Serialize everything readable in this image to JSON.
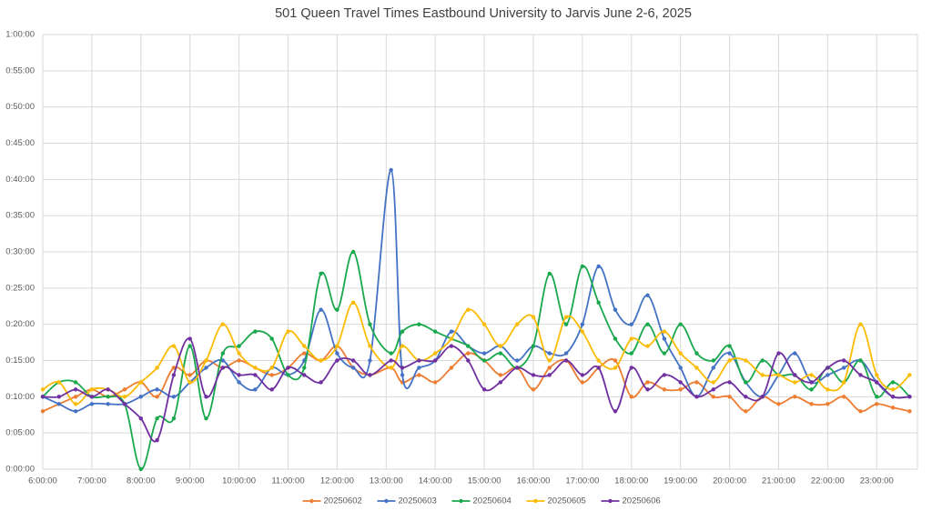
{
  "chart_data": {
    "type": "line",
    "title": "501 Queen Travel Times Eastbound University to Jarvis June 2-6, 2025",
    "x": [
      6,
      6.33,
      6.67,
      7,
      7.33,
      7.67,
      8,
      8.33,
      8.67,
      9,
      9.33,
      9.67,
      10,
      10.33,
      10.67,
      11,
      11.33,
      11.67,
      12,
      12.33,
      12.67,
      13.1,
      13.33,
      13.67,
      14,
      14.33,
      14.67,
      15,
      15.33,
      15.67,
      16,
      16.33,
      16.67,
      17,
      17.33,
      17.67,
      18,
      18.33,
      18.67,
      19,
      19.33,
      19.67,
      20,
      20.33,
      20.67,
      21,
      21.33,
      21.67,
      22,
      22.33,
      22.67,
      23,
      23.33,
      23.67
    ],
    "series": [
      {
        "name": "20250602",
        "color": "#ed7d31",
        "values": [
          8,
          9,
          10,
          11,
          10,
          11,
          12,
          10,
          14,
          13,
          15,
          14,
          15,
          14,
          13,
          14,
          16,
          15,
          17,
          14,
          13,
          14,
          12,
          13,
          12,
          14,
          16,
          15,
          13,
          14,
          11,
          14,
          15,
          12,
          14,
          15,
          10,
          12,
          11,
          11,
          12,
          10,
          10,
          8,
          10,
          9,
          10,
          9,
          9,
          10,
          8,
          9,
          8.5,
          8
        ]
      },
      {
        "name": "20250603",
        "color": "#4472c4",
        "values": [
          10,
          9,
          8,
          9,
          9,
          9,
          10,
          11,
          10,
          12,
          14,
          15,
          12,
          11,
          14,
          13,
          15,
          22,
          16,
          14,
          15,
          41.3,
          13,
          14,
          15,
          19,
          17,
          16,
          17,
          15,
          17,
          16,
          16,
          20,
          28,
          22,
          20,
          24,
          18,
          14,
          10,
          14,
          16,
          12,
          10,
          13,
          16,
          12,
          13,
          14,
          15,
          12,
          10,
          10
        ]
      },
      {
        "name": "20250604",
        "color": "#19a84c",
        "values": [
          10,
          12,
          12,
          10,
          10,
          9,
          0,
          7,
          7,
          17,
          7,
          16,
          17,
          19,
          18,
          13,
          14,
          27,
          22,
          30,
          20,
          16,
          19,
          20,
          19,
          18,
          17,
          15,
          16,
          14,
          17,
          27,
          20,
          28,
          23,
          18,
          16,
          20,
          16,
          20,
          16,
          15,
          17,
          12,
          15,
          13,
          13,
          11,
          14,
          12,
          15,
          10,
          12,
          10
        ]
      },
      {
        "name": "20250605",
        "color": "#fbbc05",
        "values": [
          11,
          12,
          9,
          11,
          11,
          10,
          12,
          14,
          17,
          12,
          15,
          20,
          16,
          14,
          14,
          19,
          17,
          15,
          17,
          23,
          17,
          14,
          17,
          15,
          16,
          18,
          22,
          20,
          17,
          20,
          21,
          15,
          21,
          19,
          15,
          14,
          18,
          17,
          19,
          16,
          14,
          12,
          15,
          15,
          13,
          13,
          12,
          13,
          11,
          12,
          20,
          13,
          11,
          13
        ]
      },
      {
        "name": "20250606",
        "color": "#7030a0",
        "values": [
          10,
          10,
          11,
          10,
          11,
          9,
          7,
          4,
          13,
          18,
          10,
          14,
          13,
          13,
          11,
          14,
          13,
          12,
          15,
          15,
          13,
          15,
          14,
          15,
          15,
          17,
          15,
          11,
          12,
          14,
          13,
          13,
          15,
          13,
          14,
          8,
          14,
          11,
          13,
          12,
          10,
          11,
          12,
          10,
          10,
          16,
          13,
          12,
          14,
          15,
          13,
          12,
          10,
          10
        ]
      }
    ],
    "xlim": [
      6,
      23.83
    ],
    "xticks": [
      {
        "value": 6,
        "label": "6:00:00"
      },
      {
        "value": 7,
        "label": "7:00:00"
      },
      {
        "value": 8,
        "label": "8:00:00"
      },
      {
        "value": 9,
        "label": "9:00:00"
      },
      {
        "value": 10,
        "label": "10:00:00"
      },
      {
        "value": 11,
        "label": "11:00:00"
      },
      {
        "value": 12,
        "label": "12:00:00"
      },
      {
        "value": 13,
        "label": "13:00:00"
      },
      {
        "value": 14,
        "label": "14:00:00"
      },
      {
        "value": 15,
        "label": "15:00:00"
      },
      {
        "value": 16,
        "label": "16:00:00"
      },
      {
        "value": 17,
        "label": "17:00:00"
      },
      {
        "value": 18,
        "label": "18:00:00"
      },
      {
        "value": 19,
        "label": "19:00:00"
      },
      {
        "value": 20,
        "label": "20:00:00"
      },
      {
        "value": 21,
        "label": "21:00:00"
      },
      {
        "value": 22,
        "label": "22:00:00"
      },
      {
        "value": 23,
        "label": "23:00:00"
      }
    ],
    "ylim": [
      0,
      60
    ],
    "yticks": [
      {
        "value": 0,
        "label": "0:00:00"
      },
      {
        "value": 5,
        "label": "0:05:00"
      },
      {
        "value": 10,
        "label": "0:10:00"
      },
      {
        "value": 15,
        "label": "0:15:00"
      },
      {
        "value": 20,
        "label": "0:20:00"
      },
      {
        "value": 25,
        "label": "0:25:00"
      },
      {
        "value": 30,
        "label": "0:30:00"
      },
      {
        "value": 35,
        "label": "0:35:00"
      },
      {
        "value": 40,
        "label": "0:40:00"
      },
      {
        "value": 45,
        "label": "0:45:00"
      },
      {
        "value": 50,
        "label": "0:50:00"
      },
      {
        "value": 55,
        "label": "0:55:00"
      },
      {
        "value": 60,
        "label": "1:00:00"
      }
    ],
    "grid": true,
    "legend": "bottom"
  }
}
